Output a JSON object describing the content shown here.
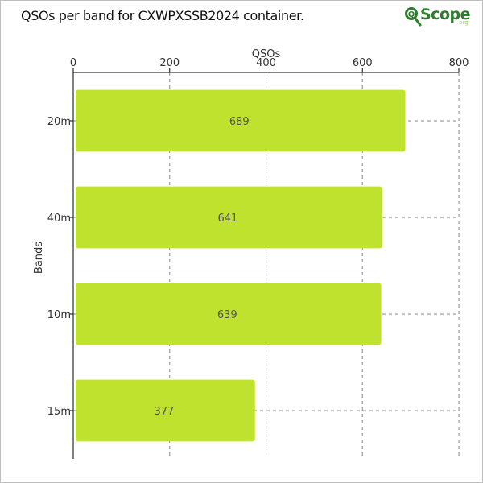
{
  "title": "QSOs per band for CXWPXSSB2024 container.",
  "logo": {
    "text": "Scope",
    "suffix": ".org"
  },
  "colors": {
    "bar": "#bfe22e",
    "grid": "#8a8a8a",
    "axis": "#000000",
    "logo_green": "#2e7d2e"
  },
  "chart_data": {
    "type": "bar",
    "orientation": "horizontal",
    "categories": [
      "20m",
      "40m",
      "10m",
      "15m"
    ],
    "values": [
      689,
      641,
      639,
      377
    ],
    "title": "QSOs per band for CXWPXSSB2024 container.",
    "xlabel": "QSOs",
    "ylabel": "Bands",
    "xlim": [
      0,
      800
    ],
    "x_ticks": [
      0,
      200,
      400,
      600,
      800
    ],
    "x_axis_position": "top",
    "grid": true,
    "data_labels": true,
    "legend": false
  }
}
